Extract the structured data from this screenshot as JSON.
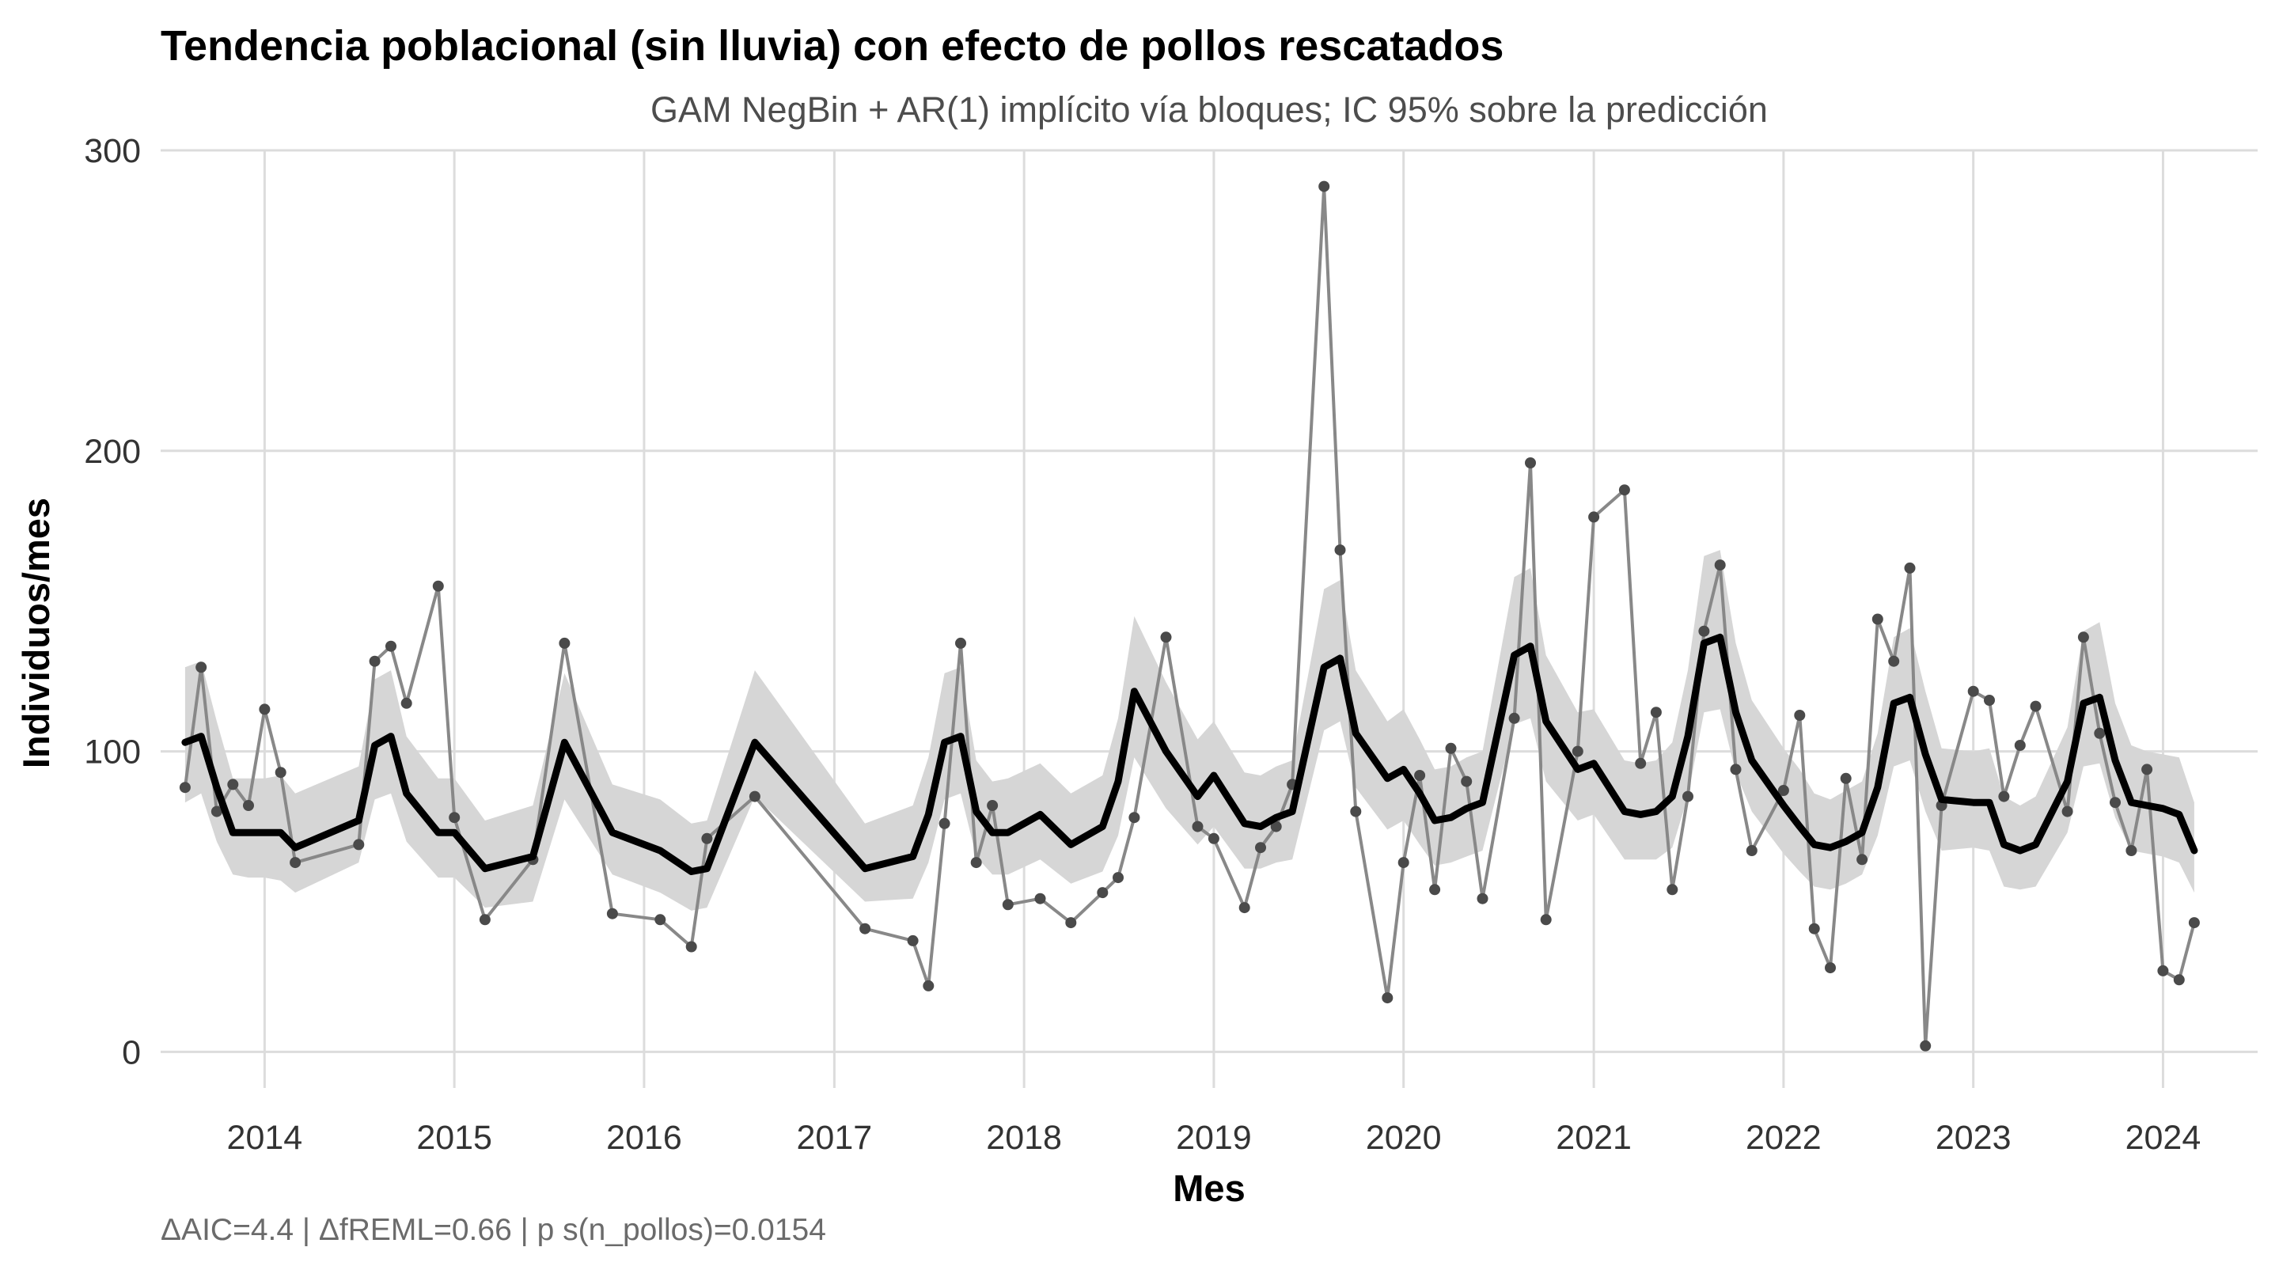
{
  "chart_data": {
    "type": "line",
    "title": "Tendencia poblacional (sin lluvia) con efecto de pollos rescatados",
    "subtitle": "GAM NegBin + AR(1) implícito vía bloques; IC 95% sobre la predicción",
    "xlabel": "Mes",
    "ylabel": "Individuos/mes",
    "caption": "ΔAIC=4.4 | ΔfREML=0.66 | p s(n_pollos)=0.0154",
    "xlim": [
      "2013-06-15",
      "2024-07-01"
    ],
    "ylim": [
      -12,
      300
    ],
    "x_ticks": [
      "2014-01-01",
      "2015-01-01",
      "2016-01-01",
      "2017-01-01",
      "2018-01-01",
      "2019-01-01",
      "2020-01-01",
      "2021-01-01",
      "2022-01-01",
      "2023-01-01",
      "2024-01-01"
    ],
    "x_tick_labels": [
      "2014",
      "2015",
      "2016",
      "2017",
      "2018",
      "2019",
      "2020",
      "2021",
      "2022",
      "2023",
      "2024"
    ],
    "y_ticks": [
      0,
      100,
      200,
      300
    ],
    "y_tick_labels": [
      "0",
      "100",
      "200",
      "300"
    ],
    "grid": true,
    "legend": "none",
    "colors": {
      "band": "#d6d6d6",
      "fit": "#000000",
      "observed": "#888888",
      "points": "#4a4a4a",
      "grid": "#dcdcdc"
    },
    "series": [
      {
        "kind": "observed",
        "x": [
          "2013-08",
          "2013-09",
          "2013-10",
          "2013-11",
          "2013-12",
          "2014-01",
          "2014-02",
          "2014-03",
          "2014-07",
          "2014-08",
          "2014-09",
          "2014-10",
          "2014-12",
          "2015-01",
          "2015-03",
          "2015-06",
          "2015-08",
          "2015-11",
          "2016-02",
          "2016-04",
          "2016-05",
          "2016-08",
          "2017-03",
          "2017-06",
          "2017-07",
          "2017-08",
          "2017-09",
          "2017-10",
          "2017-11",
          "2017-12",
          "2018-02",
          "2018-04",
          "2018-06",
          "2018-07",
          "2018-08",
          "2018-10",
          "2018-12",
          "2019-01",
          "2019-03",
          "2019-04",
          "2019-05",
          "2019-06",
          "2019-08",
          "2019-09",
          "2019-10",
          "2019-12",
          "2020-01",
          "2020-02",
          "2020-03",
          "2020-04",
          "2020-05",
          "2020-06",
          "2020-08",
          "2020-09",
          "2020-10",
          "2020-12",
          "2021-01",
          "2021-03",
          "2021-04",
          "2021-05",
          "2021-06",
          "2021-07",
          "2021-08",
          "2021-09",
          "2021-10",
          "2021-11",
          "2022-01",
          "2022-02",
          "2022-03",
          "2022-04",
          "2022-05",
          "2022-06",
          "2022-07",
          "2022-08",
          "2022-09",
          "2022-10",
          "2022-11",
          "2023-01",
          "2023-02",
          "2023-03",
          "2023-04",
          "2023-05",
          "2023-07",
          "2023-08",
          "2023-09",
          "2023-10",
          "2023-11",
          "2023-12",
          "2024-01",
          "2024-02",
          "2024-03"
        ],
        "y": [
          88,
          128,
          80,
          89,
          82,
          114,
          93,
          63,
          69,
          130,
          135,
          116,
          155,
          78,
          44,
          64,
          136,
          46,
          44,
          35,
          71,
          85,
          41,
          37,
          22,
          76,
          136,
          63,
          82,
          49,
          51,
          43,
          53,
          58,
          78,
          138,
          75,
          71,
          48,
          68,
          75,
          89,
          288,
          167,
          80,
          18,
          63,
          92,
          54,
          101,
          90,
          51,
          111,
          196,
          44,
          100,
          178,
          187,
          96,
          113,
          54,
          85,
          140,
          162,
          94,
          67,
          87,
          112,
          41,
          28,
          91,
          64,
          144,
          130,
          161,
          2,
          82,
          120,
          117,
          85,
          102,
          115,
          80,
          138,
          106,
          83,
          67,
          94,
          27,
          24,
          43
        ]
      },
      {
        "kind": "fit",
        "x": [
          "2013-08",
          "2013-09",
          "2013-10",
          "2013-11",
          "2013-12",
          "2014-01",
          "2014-02",
          "2014-03",
          "2014-07",
          "2014-08",
          "2014-09",
          "2014-10",
          "2014-12",
          "2015-01",
          "2015-03",
          "2015-06",
          "2015-08",
          "2015-11",
          "2016-02",
          "2016-04",
          "2016-05",
          "2016-08",
          "2017-03",
          "2017-06",
          "2017-07",
          "2017-08",
          "2017-09",
          "2017-10",
          "2017-11",
          "2017-12",
          "2018-02",
          "2018-04",
          "2018-06",
          "2018-07",
          "2018-08",
          "2018-10",
          "2018-12",
          "2019-01",
          "2019-03",
          "2019-04",
          "2019-05",
          "2019-06",
          "2019-08",
          "2019-09",
          "2019-10",
          "2019-12",
          "2020-01",
          "2020-02",
          "2020-03",
          "2020-04",
          "2020-05",
          "2020-06",
          "2020-08",
          "2020-09",
          "2020-10",
          "2020-12",
          "2021-01",
          "2021-03",
          "2021-04",
          "2021-05",
          "2021-06",
          "2021-07",
          "2021-08",
          "2021-09",
          "2021-10",
          "2021-11",
          "2022-01",
          "2022-02",
          "2022-03",
          "2022-04",
          "2022-05",
          "2022-06",
          "2022-07",
          "2022-08",
          "2022-09",
          "2022-10",
          "2022-11",
          "2023-01",
          "2023-02",
          "2023-03",
          "2023-04",
          "2023-05",
          "2023-07",
          "2023-08",
          "2023-09",
          "2023-10",
          "2023-11",
          "2023-12",
          "2024-01",
          "2024-02",
          "2024-03"
        ],
        "y": [
          103,
          105,
          88,
          73,
          73,
          73,
          73,
          68,
          77,
          102,
          105,
          86,
          73,
          73,
          61,
          65,
          103,
          73,
          67,
          60,
          61,
          103,
          61,
          65,
          79,
          103,
          105,
          80,
          73,
          73,
          79,
          69,
          75,
          90,
          120,
          100,
          85,
          92,
          76,
          75,
          78,
          80,
          128,
          131,
          106,
          91,
          94,
          86,
          77,
          78,
          81,
          83,
          132,
          135,
          110,
          94,
          96,
          80,
          79,
          80,
          85,
          105,
          136,
          138,
          113,
          97,
          82,
          75,
          69,
          68,
          70,
          73,
          88,
          116,
          118,
          99,
          84,
          83,
          83,
          69,
          67,
          69,
          90,
          116,
          118,
          97,
          83,
          82,
          81,
          79,
          67
        ],
        "lo": [
          83,
          86,
          70,
          59,
          58,
          58,
          57,
          53,
          63,
          84,
          86,
          70,
          58,
          58,
          48,
          50,
          84,
          59,
          53,
          47,
          48,
          85,
          50,
          51,
          63,
          84,
          86,
          65,
          59,
          59,
          64,
          56,
          60,
          72,
          98,
          81,
          69,
          75,
          61,
          61,
          63,
          64,
          107,
          110,
          88,
          74,
          77,
          69,
          62,
          63,
          65,
          67,
          109,
          111,
          90,
          77,
          79,
          64,
          64,
          64,
          68,
          85,
          113,
          114,
          93,
          80,
          66,
          60,
          55,
          54,
          56,
          59,
          72,
          95,
          97,
          80,
          67,
          68,
          67,
          55,
          54,
          55,
          73,
          95,
          96,
          78,
          67,
          66,
          65,
          63,
          53
        ],
        "hi": [
          128,
          130,
          110,
          91,
          91,
          91,
          92,
          86,
          95,
          124,
          127,
          105,
          91,
          91,
          77,
          82,
          126,
          89,
          84,
          76,
          77,
          127,
          76,
          82,
          98,
          126,
          128,
          97,
          90,
          91,
          96,
          86,
          92,
          111,
          145,
          123,
          104,
          110,
          93,
          92,
          95,
          97,
          154,
          157,
          127,
          110,
          114,
          104,
          94,
          95,
          98,
          100,
          158,
          161,
          132,
          113,
          114,
          97,
          96,
          97,
          103,
          127,
          165,
          167,
          136,
          117,
          101,
          94,
          86,
          84,
          87,
          90,
          106,
          138,
          141,
          120,
          101,
          100,
          101,
          85,
          82,
          85,
          108,
          140,
          143,
          116,
          102,
          100,
          99,
          98,
          83
        ]
      }
    ]
  }
}
